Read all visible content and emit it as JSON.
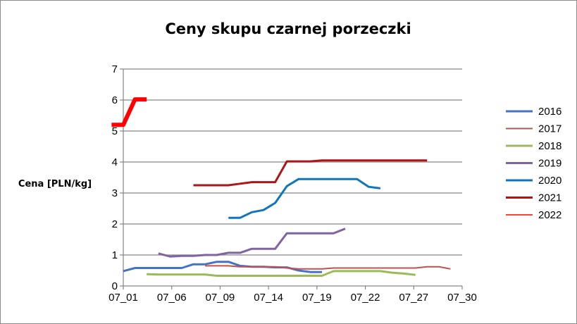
{
  "chart_data": {
    "type": "line",
    "title": "Ceny skupu czarnej porzeczki",
    "xlabel": "",
    "ylabel": "Cena [PLN/kg]",
    "x_tick_labels": [
      "07_01",
      "07_06",
      "07_09",
      "07_14",
      "07_19",
      "07_22",
      "07_27",
      "07_30"
    ],
    "x_day_range": [
      1,
      30
    ],
    "ylim": [
      0,
      7
    ],
    "y_ticks": [
      0,
      1,
      2,
      3,
      4,
      5,
      6,
      7
    ],
    "grid": "horizontal",
    "legend_position": "right",
    "series": [
      {
        "name": "2016",
        "color": "#4472c4",
        "points": [
          [
            1,
            0.48
          ],
          [
            2,
            0.58
          ],
          [
            3,
            0.58
          ],
          [
            4,
            0.58
          ],
          [
            5,
            0.58
          ],
          [
            6,
            0.58
          ],
          [
            7,
            0.7
          ],
          [
            8,
            0.7
          ],
          [
            9,
            0.78
          ],
          [
            10,
            0.78
          ],
          [
            11,
            0.65
          ],
          [
            12,
            0.62
          ],
          [
            13,
            0.62
          ],
          [
            14,
            0.6
          ],
          [
            15,
            0.6
          ],
          [
            16,
            0.5
          ],
          [
            17,
            0.45
          ],
          [
            18,
            0.45
          ]
        ]
      },
      {
        "name": "2017",
        "color": "#c0504d",
        "points": [
          [
            8,
            0.65
          ],
          [
            9,
            0.65
          ],
          [
            10,
            0.65
          ],
          [
            11,
            0.62
          ],
          [
            12,
            0.62
          ],
          [
            13,
            0.62
          ],
          [
            14,
            0.62
          ],
          [
            15,
            0.58
          ],
          [
            16,
            0.55
          ],
          [
            17,
            0.55
          ],
          [
            18,
            0.55
          ],
          [
            19,
            0.58
          ],
          [
            20,
            0.58
          ],
          [
            21,
            0.58
          ],
          [
            22,
            0.58
          ],
          [
            23,
            0.58
          ],
          [
            24,
            0.58
          ],
          [
            25,
            0.58
          ],
          [
            26,
            0.58
          ],
          [
            27,
            0.62
          ],
          [
            28,
            0.62
          ],
          [
            29,
            0.55
          ]
        ]
      },
      {
        "name": "2018",
        "color": "#9bbb59",
        "points": [
          [
            3,
            0.38
          ],
          [
            4,
            0.37
          ],
          [
            5,
            0.37
          ],
          [
            6,
            0.37
          ],
          [
            7,
            0.37
          ],
          [
            8,
            0.37
          ],
          [
            9,
            0.33
          ],
          [
            10,
            0.33
          ],
          [
            11,
            0.33
          ],
          [
            12,
            0.33
          ],
          [
            13,
            0.33
          ],
          [
            14,
            0.33
          ],
          [
            15,
            0.33
          ],
          [
            16,
            0.33
          ],
          [
            17,
            0.33
          ],
          [
            18,
            0.33
          ],
          [
            19,
            0.48
          ],
          [
            20,
            0.48
          ],
          [
            21,
            0.48
          ],
          [
            22,
            0.48
          ],
          [
            23,
            0.48
          ],
          [
            24,
            0.43
          ],
          [
            25,
            0.4
          ],
          [
            26,
            0.36
          ]
        ]
      },
      {
        "name": "2019",
        "color": "#8064a2",
        "points": [
          [
            4,
            1.05
          ],
          [
            5,
            0.95
          ],
          [
            6,
            0.97
          ],
          [
            7,
            0.97
          ],
          [
            8,
            1.0
          ],
          [
            9,
            1.0
          ],
          [
            10,
            1.07
          ],
          [
            11,
            1.07
          ],
          [
            12,
            1.2
          ],
          [
            13,
            1.2
          ],
          [
            14,
            1.2
          ],
          [
            15,
            1.7
          ],
          [
            16,
            1.7
          ],
          [
            17,
            1.7
          ],
          [
            18,
            1.7
          ],
          [
            19,
            1.7
          ],
          [
            20,
            1.85
          ]
        ]
      },
      {
        "name": "2020",
        "color": "#0f75bc",
        "points": [
          [
            10,
            2.2
          ],
          [
            11,
            2.2
          ],
          [
            12,
            2.38
          ],
          [
            13,
            2.45
          ],
          [
            14,
            2.68
          ],
          [
            15,
            3.22
          ],
          [
            16,
            3.45
          ],
          [
            17,
            3.45
          ],
          [
            18,
            3.45
          ],
          [
            19,
            3.45
          ],
          [
            20,
            3.45
          ],
          [
            21,
            3.45
          ],
          [
            22,
            3.2
          ],
          [
            23,
            3.15
          ]
        ]
      },
      {
        "name": "2021",
        "color": "#b31217",
        "points": [
          [
            7,
            3.25
          ],
          [
            8,
            3.25
          ],
          [
            9,
            3.25
          ],
          [
            10,
            3.25
          ],
          [
            11,
            3.3
          ],
          [
            12,
            3.35
          ],
          [
            13,
            3.35
          ],
          [
            14,
            3.35
          ],
          [
            15,
            4.02
          ],
          [
            16,
            4.02
          ],
          [
            17,
            4.02
          ],
          [
            18,
            4.05
          ],
          [
            19,
            4.05
          ],
          [
            20,
            4.05
          ],
          [
            21,
            4.05
          ],
          [
            22,
            4.05
          ],
          [
            23,
            4.05
          ],
          [
            24,
            4.05
          ],
          [
            25,
            4.05
          ],
          [
            26,
            4.05
          ],
          [
            27,
            4.05
          ]
        ]
      },
      {
        "name": "2022",
        "color": "#ff0000",
        "points": [
          [
            0,
            5.2
          ],
          [
            1,
            5.2
          ],
          [
            2,
            6.02
          ],
          [
            3,
            6.02
          ]
        ]
      }
    ]
  },
  "style": {
    "axis_color": "#868686",
    "grid_color": "#868686",
    "series_widths": {
      "2016": 3,
      "2017": 2,
      "2018": 3,
      "2019": 3,
      "2020": 3,
      "2021": 3,
      "2022": 6
    },
    "legend_widths": {
      "2016": 3,
      "2017": 2,
      "2018": 3,
      "2019": 3,
      "2020": 3,
      "2021": 3,
      "2022": 1.5
    }
  }
}
